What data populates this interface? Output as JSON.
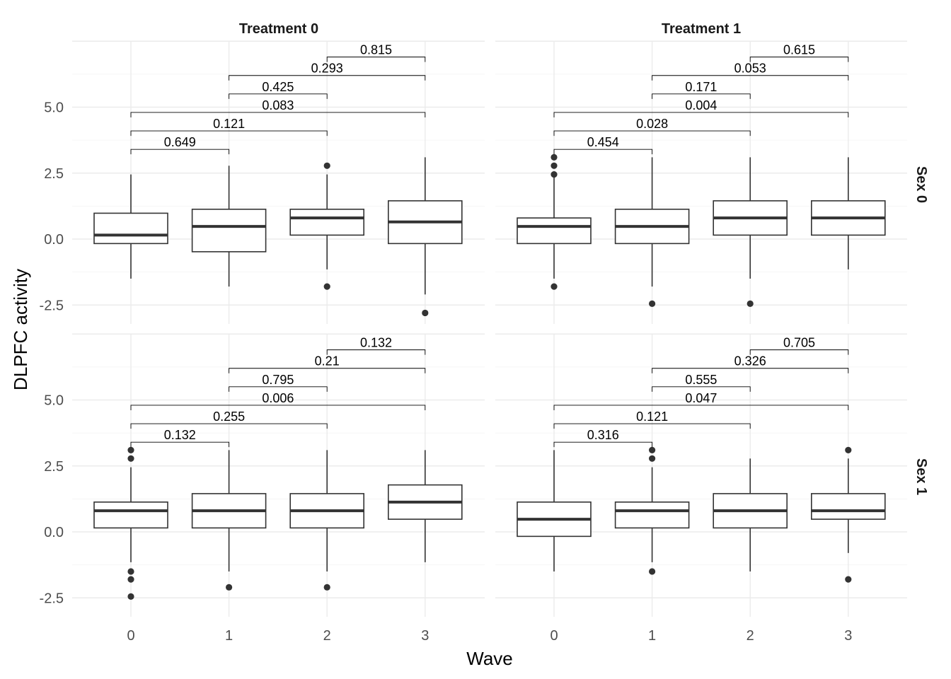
{
  "chart_data": {
    "type": "boxplot",
    "xlabel": "Wave",
    "ylabel": "DLPFC activity",
    "x_categories": [
      "0",
      "1",
      "2",
      "3"
    ],
    "y_ticks": [
      "5.0",
      "2.5",
      "0.0",
      "-2.5"
    ],
    "y_tick_values": [
      5.0,
      2.5,
      0.0,
      -2.5
    ],
    "ylim": [
      -3.6,
      7.5
    ],
    "grid": true,
    "column_strips": [
      "Treatment 0",
      "Treatment 1"
    ],
    "row_strips": [
      "Sex 0",
      "Sex 1"
    ],
    "panels": [
      {
        "treatment": "Treatment 0",
        "sex": "Sex 0",
        "boxes": [
          {
            "wave": "0",
            "lower": -1.5,
            "q1": -0.17,
            "median": 0.15,
            "q3": 0.98,
            "upper": 2.45,
            "outliers": []
          },
          {
            "wave": "1",
            "lower": -1.8,
            "q1": -0.48,
            "median": 0.48,
            "q3": 1.13,
            "upper": 2.78,
            "outliers": []
          },
          {
            "wave": "2",
            "lower": -1.15,
            "q1": 0.15,
            "median": 0.8,
            "q3": 1.13,
            "upper": 2.45,
            "outliers": [
              2.78,
              -1.8
            ]
          },
          {
            "wave": "3",
            "lower": -2.1,
            "q1": -0.17,
            "median": 0.65,
            "q3": 1.45,
            "upper": 3.1,
            "outliers": [
              -2.8
            ]
          }
        ],
        "comparisons": [
          {
            "from": "0",
            "to": "1",
            "p": "0.649",
            "y": 3.4
          },
          {
            "from": "0",
            "to": "2",
            "p": "0.121",
            "y": 4.1
          },
          {
            "from": "0",
            "to": "3",
            "p": "0.083",
            "y": 4.8
          },
          {
            "from": "1",
            "to": "2",
            "p": "0.425",
            "y": 5.5
          },
          {
            "from": "1",
            "to": "3",
            "p": "0.293",
            "y": 6.2
          },
          {
            "from": "2",
            "to": "3",
            "p": "0.815",
            "y": 6.9
          }
        ]
      },
      {
        "treatment": "Treatment 1",
        "sex": "Sex 0",
        "boxes": [
          {
            "wave": "0",
            "lower": -1.5,
            "q1": -0.17,
            "median": 0.48,
            "q3": 0.8,
            "upper": 2.45,
            "outliers": [
              3.1,
              2.78,
              2.45,
              -1.8
            ]
          },
          {
            "wave": "1",
            "lower": -1.8,
            "q1": -0.17,
            "median": 0.48,
            "q3": 1.13,
            "upper": 3.1,
            "outliers": [
              -2.45
            ]
          },
          {
            "wave": "2",
            "lower": -1.5,
            "q1": 0.15,
            "median": 0.8,
            "q3": 1.45,
            "upper": 3.1,
            "outliers": [
              -2.45
            ]
          },
          {
            "wave": "3",
            "lower": -1.15,
            "q1": 0.15,
            "median": 0.8,
            "q3": 1.45,
            "upper": 3.1,
            "outliers": []
          }
        ],
        "comparisons": [
          {
            "from": "0",
            "to": "1",
            "p": "0.454",
            "y": 3.4
          },
          {
            "from": "0",
            "to": "2",
            "p": "0.028",
            "y": 4.1
          },
          {
            "from": "0",
            "to": "3",
            "p": "0.004",
            "y": 4.8
          },
          {
            "from": "1",
            "to": "2",
            "p": "0.171",
            "y": 5.5
          },
          {
            "from": "1",
            "to": "3",
            "p": "0.053",
            "y": 6.2
          },
          {
            "from": "2",
            "to": "3",
            "p": "0.615",
            "y": 6.9
          }
        ]
      },
      {
        "treatment": "Treatment 0",
        "sex": "Sex 1",
        "boxes": [
          {
            "wave": "0",
            "lower": -1.15,
            "q1": 0.15,
            "median": 0.8,
            "q3": 1.13,
            "upper": 2.45,
            "outliers": [
              3.1,
              2.78,
              -1.5,
              -1.8,
              -2.45
            ]
          },
          {
            "wave": "1",
            "lower": -1.5,
            "q1": 0.15,
            "median": 0.8,
            "q3": 1.45,
            "upper": 3.1,
            "outliers": [
              -2.1
            ]
          },
          {
            "wave": "2",
            "lower": -1.5,
            "q1": 0.15,
            "median": 0.8,
            "q3": 1.45,
            "upper": 3.1,
            "outliers": [
              -2.1
            ]
          },
          {
            "wave": "3",
            "lower": -1.15,
            "q1": 0.48,
            "median": 1.13,
            "q3": 1.78,
            "upper": 3.1,
            "outliers": []
          }
        ],
        "comparisons": [
          {
            "from": "0",
            "to": "1",
            "p": "0.132",
            "y": 3.4
          },
          {
            "from": "0",
            "to": "2",
            "p": "0.255",
            "y": 4.1
          },
          {
            "from": "0",
            "to": "3",
            "p": "0.006",
            "y": 4.8
          },
          {
            "from": "1",
            "to": "2",
            "p": "0.795",
            "y": 5.5
          },
          {
            "from": "1",
            "to": "3",
            "p": "0.21",
            "y": 6.2
          },
          {
            "from": "2",
            "to": "3",
            "p": "0.132",
            "y": 6.9
          }
        ]
      },
      {
        "treatment": "Treatment 1",
        "sex": "Sex 1",
        "boxes": [
          {
            "wave": "0",
            "lower": -1.5,
            "q1": -0.17,
            "median": 0.48,
            "q3": 1.13,
            "upper": 3.1,
            "outliers": []
          },
          {
            "wave": "1",
            "lower": -1.15,
            "q1": 0.15,
            "median": 0.8,
            "q3": 1.13,
            "upper": 2.45,
            "outliers": [
              3.1,
              2.78,
              -1.5
            ]
          },
          {
            "wave": "2",
            "lower": -1.5,
            "q1": 0.15,
            "median": 0.8,
            "q3": 1.45,
            "upper": 2.78,
            "outliers": []
          },
          {
            "wave": "3",
            "lower": -0.8,
            "q1": 0.48,
            "median": 0.8,
            "q3": 1.45,
            "upper": 2.78,
            "outliers": [
              3.1,
              -1.8
            ]
          }
        ],
        "comparisons": [
          {
            "from": "0",
            "to": "1",
            "p": "0.316",
            "y": 3.4
          },
          {
            "from": "0",
            "to": "2",
            "p": "0.121",
            "y": 4.1
          },
          {
            "from": "0",
            "to": "3",
            "p": "0.047",
            "y": 4.8
          },
          {
            "from": "1",
            "to": "2",
            "p": "0.555",
            "y": 5.5
          },
          {
            "from": "1",
            "to": "3",
            "p": "0.326",
            "y": 6.2
          },
          {
            "from": "2",
            "to": "3",
            "p": "0.705",
            "y": 6.9
          }
        ]
      }
    ]
  }
}
